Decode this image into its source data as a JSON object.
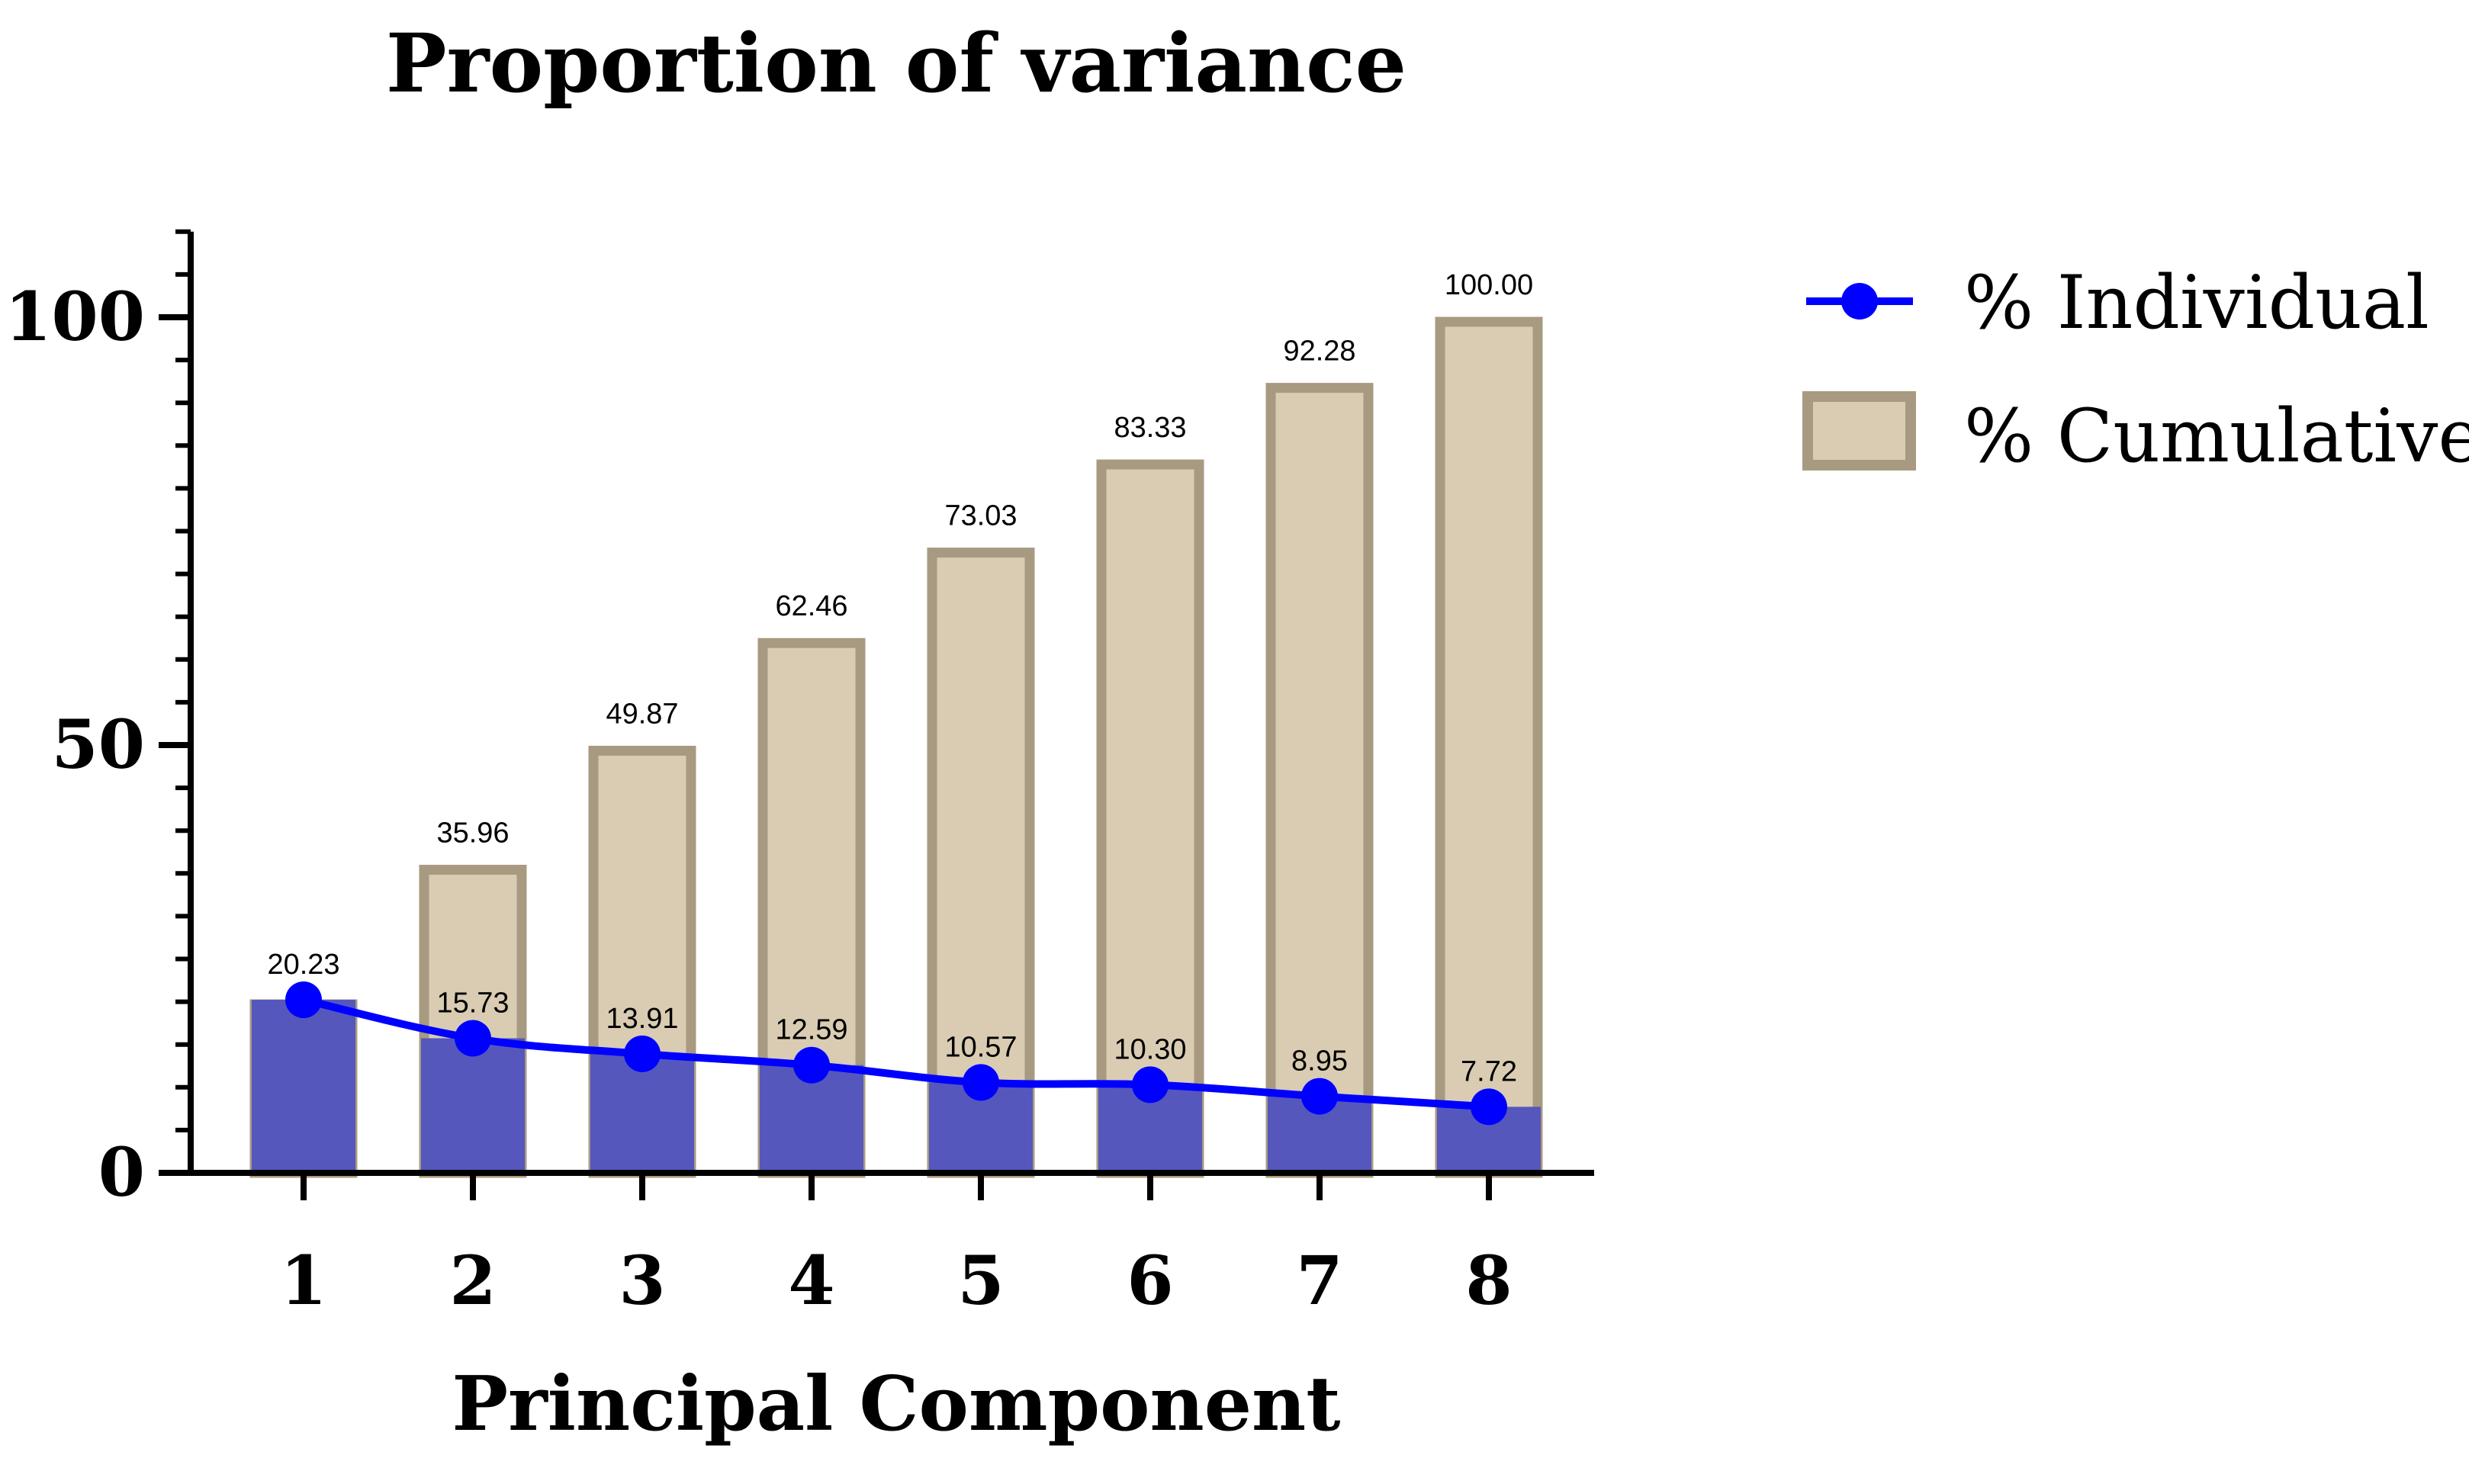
{
  "chart_data": {
    "type": "bar",
    "title": "Proportion of variance",
    "xlabel": "Principal Component",
    "ylabel": "",
    "categories": [
      "1",
      "2",
      "3",
      "4",
      "5",
      "6",
      "7",
      "8"
    ],
    "ylim": [
      0,
      110
    ],
    "yticks": [
      0,
      50,
      100
    ],
    "ytick_labels": [
      "0",
      "50",
      "100"
    ],
    "grid": false,
    "legend_position": "top-right",
    "series": [
      {
        "name": "% Cumulative",
        "kind": "bar",
        "values": [
          20.23,
          35.96,
          49.87,
          62.46,
          73.03,
          83.33,
          92.28,
          100.0
        ],
        "labels": [
          "",
          "35.96",
          "49.87",
          "62.46",
          "73.03",
          "83.33",
          "92.28",
          "100.00"
        ],
        "fill_color": "#d9ccb3",
        "edge_color": "#a89a80"
      },
      {
        "name": "% Individual",
        "kind": "line",
        "values": [
          20.23,
          15.73,
          13.91,
          12.59,
          10.57,
          10.3,
          8.95,
          7.72
        ],
        "labels": [
          "20.23",
          "15.73",
          "13.91",
          "12.59",
          "10.57",
          "10.30",
          "8.95",
          "7.72"
        ],
        "bar_fill_color": "#5557bd",
        "color": "#0000ff"
      }
    ]
  }
}
